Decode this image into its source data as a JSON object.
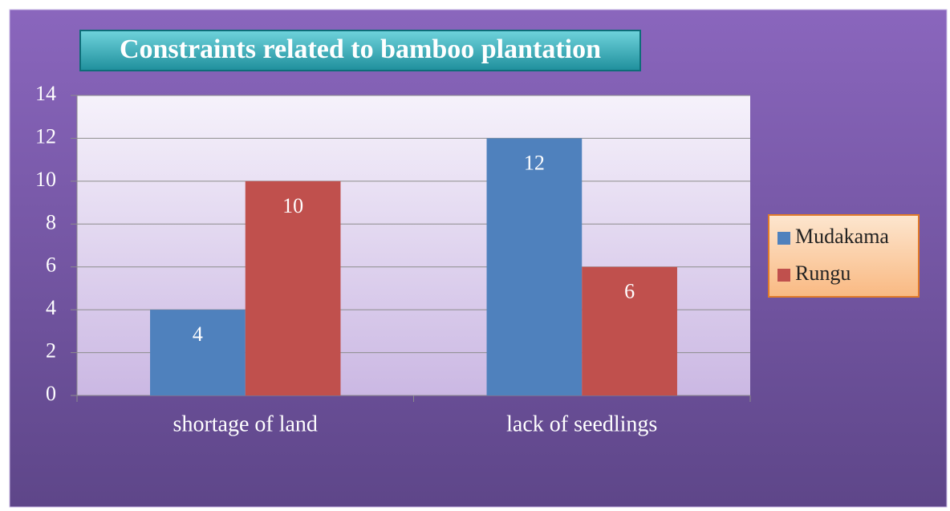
{
  "chart_data": {
    "type": "bar",
    "title": "Constraints related to bamboo plantation",
    "categories": [
      "shortage of land",
      "lack of seedlings"
    ],
    "series": [
      {
        "name": "Mudakama",
        "color": "#4f81bd",
        "values": [
          4,
          12
        ]
      },
      {
        "name": "Rungu",
        "color": "#c0504d",
        "values": [
          10,
          6
        ]
      }
    ],
    "ylim": [
      0,
      14
    ],
    "yticks": [
      0,
      2,
      4,
      6,
      8,
      10,
      12,
      14
    ],
    "grid": true,
    "legend": "right"
  }
}
